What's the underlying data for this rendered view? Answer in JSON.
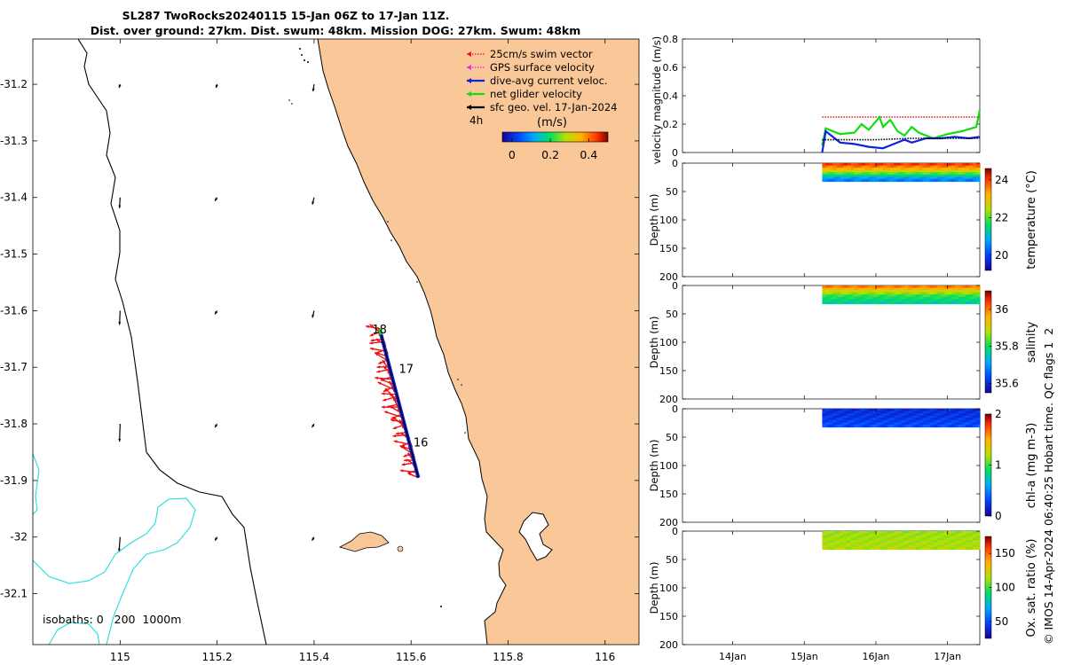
{
  "title_line1": "SL287 TwoRocks20240115 15-Jan 06Z to 17-Jan 11Z.",
  "title_line2": "Dist. over ground: 27km. Dist. swum: 48km. Mission DOG: 27km. Swum: 48km",
  "credit": "© IMOS 14-Apr-2024 06:40:25 Hobart time. QC flags 1  2",
  "colors": {
    "land": "#fac898",
    "coast": "#000000",
    "isobath": "#22dddd",
    "swim": "#ee1111",
    "gps": "#ee22ee",
    "current": "#1122dd",
    "net": "#11dd11",
    "sfc": "#000000"
  },
  "chart_data": [
    {
      "type": "map",
      "xlim": [
        114.82,
        116.07
      ],
      "ylim": [
        -32.19,
        -31.12
      ],
      "y_axis_reversed": true,
      "xticks": [
        115,
        115.2,
        115.4,
        115.6,
        115.8,
        116
      ],
      "xtick_labels": [
        "115",
        "115.2",
        "115.4",
        "115.6",
        "115.8",
        "116"
      ],
      "yticks": [
        -31.2,
        -31.3,
        -31.4,
        -31.5,
        -31.6,
        -31.7,
        -31.8,
        -31.9,
        -32,
        -32.1
      ],
      "ytick_labels": [
        "-31.2",
        "-31.3",
        "-31.4",
        "-31.5",
        "-31.6",
        "-31.7",
        "-31.8",
        "-31.9",
        "-32",
        "-32.1"
      ],
      "legend": {
        "position": "top-right",
        "entries": [
          {
            "label": "25cm/s swim vector",
            "color": "#ee1111",
            "style": "dotted"
          },
          {
            "label": "GPS surface velocity",
            "color": "#ee22ee",
            "style": "dotted"
          },
          {
            "label": "dive-avg current veloc.",
            "color": "#1122dd",
            "style": "solid"
          },
          {
            "label": "net glider velocity",
            "color": "#11dd11",
            "style": "solid"
          },
          {
            "label": "sfc geo. vel. 17-Jan-2024",
            "color": "#000000",
            "style": "solid"
          }
        ]
      },
      "scale_label": "4h",
      "colorbar": {
        "label": "(m/s)",
        "ticks": [
          0,
          0.2,
          0.4
        ],
        "tick_labels": [
          "0",
          "0.2",
          "0.4"
        ],
        "range": [
          -0.05,
          0.5
        ]
      },
      "isobath_label": "isobaths: 0   200  1000m",
      "track_day_labels": [
        {
          "text": "18",
          "lon": 115.535,
          "lat": -31.64
        },
        {
          "text": "17",
          "lon": 115.59,
          "lat": -31.71
        },
        {
          "text": "16",
          "lon": 115.62,
          "lat": -31.84
        }
      ],
      "track_start": [
        115.615,
        -31.895
      ],
      "track_end": [
        115.535,
        -31.632
      ],
      "sfc_current_vectors": [
        {
          "lon": 115.0,
          "lat": -31.2,
          "u": 0.005,
          "v": 0.01
        },
        {
          "lon": 115.2,
          "lat": -31.2,
          "u": 0.005,
          "v": 0.01
        },
        {
          "lon": 115.4,
          "lat": -31.2,
          "u": 0.005,
          "v": 0.02
        },
        {
          "lon": 115.0,
          "lat": -31.4,
          "u": 0.003,
          "v": 0.03
        },
        {
          "lon": 115.2,
          "lat": -31.4,
          "u": 0.01,
          "v": 0.01
        },
        {
          "lon": 115.4,
          "lat": -31.4,
          "u": 0.008,
          "v": 0.02
        },
        {
          "lon": 115.0,
          "lat": -31.6,
          "u": 0.003,
          "v": 0.04
        },
        {
          "lon": 115.2,
          "lat": -31.6,
          "u": 0.01,
          "v": 0.01
        },
        {
          "lon": 115.4,
          "lat": -31.6,
          "u": 0.008,
          "v": 0.02
        },
        {
          "lon": 115.0,
          "lat": -31.8,
          "u": 0.003,
          "v": 0.05
        },
        {
          "lon": 115.2,
          "lat": -31.8,
          "u": 0.01,
          "v": 0.01
        },
        {
          "lon": 115.4,
          "lat": -31.8,
          "u": 0.01,
          "v": 0.01
        },
        {
          "lon": 115.0,
          "lat": -32.0,
          "u": 0.005,
          "v": 0.04
        },
        {
          "lon": 115.2,
          "lat": -32.0,
          "u": 0.01,
          "v": 0.01
        },
        {
          "lon": 115.4,
          "lat": -32.0,
          "u": 0.01,
          "v": 0.01
        }
      ]
    },
    {
      "type": "line",
      "ylabel": "velocity magnitude (m/s)",
      "ylim": [
        0,
        0.8
      ],
      "yticks": [
        0,
        0.2,
        0.4,
        0.6,
        0.8
      ],
      "ytick_labels": [
        "0",
        "0.2",
        "0.4",
        "0.6",
        "0.8"
      ],
      "x_day_range": [
        13.3,
        17.45
      ],
      "series": [
        {
          "color": "#ee1111",
          "style": "dotted",
          "x": [
            15.25,
            17.45
          ],
          "values": [
            0.25,
            0.25
          ]
        },
        {
          "color": "#11dd11",
          "style": "solid",
          "x": [
            15.25,
            15.3,
            15.5,
            15.7,
            15.8,
            15.9,
            16.0,
            16.05,
            16.1,
            16.2,
            16.3,
            16.4,
            16.5,
            16.6,
            16.8,
            17.0,
            17.2,
            17.4,
            17.45
          ],
          "values": [
            0.05,
            0.17,
            0.13,
            0.14,
            0.2,
            0.16,
            0.22,
            0.25,
            0.18,
            0.23,
            0.15,
            0.12,
            0.18,
            0.14,
            0.1,
            0.13,
            0.15,
            0.18,
            0.3
          ]
        },
        {
          "color": "#1122dd",
          "style": "solid",
          "x": [
            15.25,
            15.3,
            15.5,
            15.7,
            15.9,
            16.1,
            16.2,
            16.4,
            16.5,
            16.7,
            16.9,
            17.1,
            17.3,
            17.45
          ],
          "values": [
            0.0,
            0.15,
            0.07,
            0.06,
            0.04,
            0.03,
            0.05,
            0.09,
            0.07,
            0.1,
            0.1,
            0.11,
            0.1,
            0.11
          ]
        },
        {
          "color": "#000000",
          "style": "dotted",
          "x": [
            15.25,
            15.6,
            16.0,
            16.5,
            17.0,
            17.45
          ],
          "values": [
            0.09,
            0.09,
            0.09,
            0.1,
            0.1,
            0.1
          ]
        }
      ]
    },
    {
      "type": "heatmap",
      "label": "temperature (°C)",
      "ylabel": "Depth (m)",
      "ylim": [
        0,
        200
      ],
      "yticks": [
        0,
        50,
        100,
        150,
        200
      ],
      "ytick_labels": [
        "0",
        "50",
        "100",
        "150",
        "200"
      ],
      "x_range": [
        15.25,
        17.45
      ],
      "depth_range": [
        0,
        32
      ],
      "colorbar": {
        "ticks": [
          20,
          22,
          24
        ],
        "tick_labels": [
          "20",
          "22",
          "24"
        ],
        "range": [
          19.2,
          24.6
        ]
      },
      "profile": [
        {
          "depth": 0,
          "value": 24.0
        },
        {
          "depth": 8,
          "value": 23.2
        },
        {
          "depth": 16,
          "value": 22.0
        },
        {
          "depth": 24,
          "value": 20.8
        },
        {
          "depth": 32,
          "value": 20.2
        }
      ]
    },
    {
      "type": "heatmap",
      "label": "salinity",
      "ylabel": "Depth (m)",
      "ylim": [
        0,
        200
      ],
      "yticks": [
        0,
        50,
        100,
        150,
        200
      ],
      "ytick_labels": [
        "0",
        "50",
        "100",
        "150",
        "200"
      ],
      "x_range": [
        15.25,
        17.45
      ],
      "depth_range": [
        0,
        32
      ],
      "colorbar": {
        "ticks": [
          35.6,
          35.8,
          36
        ],
        "tick_labels": [
          "35.6",
          "35.8",
          "36"
        ],
        "range": [
          35.55,
          36.1
        ]
      },
      "profile": [
        {
          "depth": 0,
          "value": 36.0
        },
        {
          "depth": 8,
          "value": 35.9
        },
        {
          "depth": 16,
          "value": 35.82
        },
        {
          "depth": 24,
          "value": 35.78
        },
        {
          "depth": 32,
          "value": 35.76
        }
      ]
    },
    {
      "type": "heatmap",
      "label": "chl-a (mg m-3)",
      "ylabel": "Depth (m)",
      "ylim": [
        0,
        200
      ],
      "yticks": [
        0,
        50,
        100,
        150,
        200
      ],
      "ytick_labels": [
        "0",
        "50",
        "100",
        "150",
        "200"
      ],
      "x_range": [
        15.25,
        17.45
      ],
      "depth_range": [
        0,
        32
      ],
      "colorbar": {
        "ticks": [
          0,
          1,
          2
        ],
        "tick_labels": [
          "0",
          "1",
          "2"
        ],
        "range": [
          0,
          2
        ]
      },
      "profile": [
        {
          "depth": 0,
          "value": 0.2
        },
        {
          "depth": 16,
          "value": 0.25
        },
        {
          "depth": 32,
          "value": 0.35
        }
      ]
    },
    {
      "type": "heatmap",
      "label": "Ox. sat. ratio (%)",
      "ylabel": "Depth (m)",
      "ylim": [
        0,
        200
      ],
      "yticks": [
        0,
        50,
        100,
        150,
        200
      ],
      "ytick_labels": [
        "0",
        "50",
        "100",
        "150",
        "200"
      ],
      "x_range": [
        15.25,
        17.45
      ],
      "depth_range": [
        0,
        32
      ],
      "colorbar": {
        "ticks": [
          50,
          100,
          150
        ],
        "tick_labels": [
          "50",
          "100",
          "150"
        ],
        "range": [
          25,
          175
        ]
      },
      "profile": [
        {
          "depth": 0,
          "value": 112
        },
        {
          "depth": 32,
          "value": 115
        }
      ]
    }
  ],
  "time_axis": {
    "ticks": [
      14,
      15,
      16,
      17
    ],
    "tick_labels": [
      "14Jan",
      "15Jan",
      "16Jan",
      "17Jan"
    ],
    "range": [
      13.3,
      17.45
    ]
  }
}
